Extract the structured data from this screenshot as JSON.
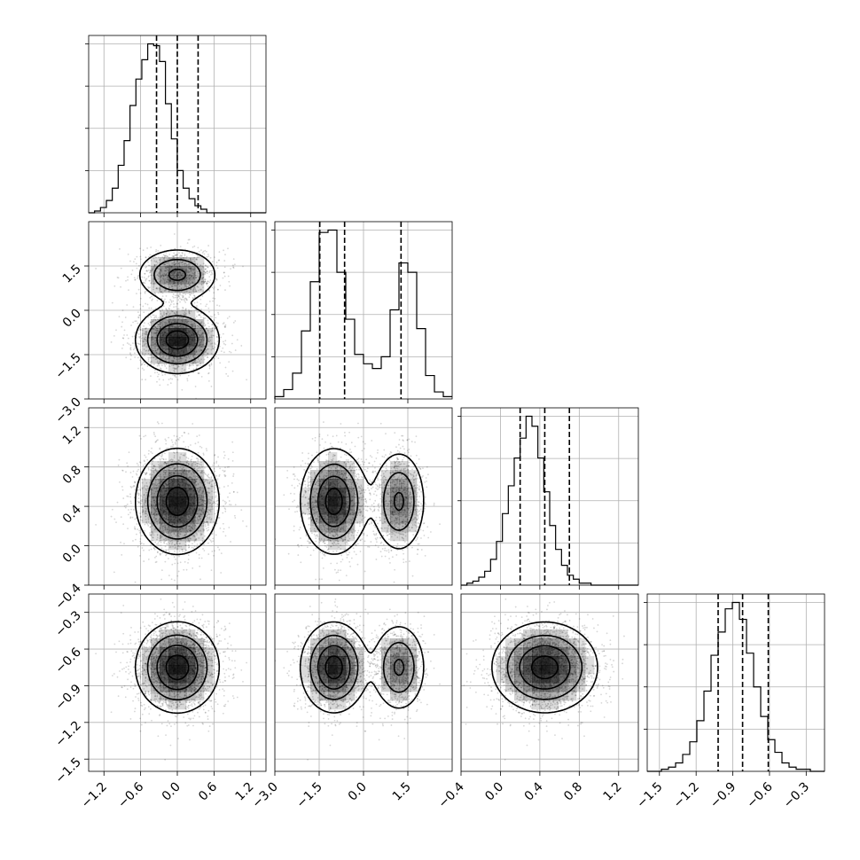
{
  "chart_data": {
    "type": "corner",
    "parameters": 4,
    "grid": true,
    "quantiles": [
      0.16,
      0.5,
      0.84
    ],
    "colors": {
      "line": "#000000",
      "grid": "#b0b0b0",
      "density": "#000000"
    },
    "axes": [
      {
        "range": [
          -1.45,
          1.45
        ],
        "ticks": [
          -1.2,
          -0.6,
          0.0,
          0.6,
          1.2
        ],
        "tick_labels": [
          "−1.2",
          "−0.6",
          "0.0",
          "0.6",
          "1.2"
        ]
      },
      {
        "range": [
          -3.0,
          3.0
        ],
        "ticks": [
          -3.0,
          -1.5,
          0.0,
          1.5
        ],
        "tick_labels": [
          "−3.0",
          "−1.5",
          "0.0",
          "1.5"
        ]
      },
      {
        "range": [
          -0.4,
          1.4
        ],
        "ticks": [
          -0.4,
          0.0,
          0.4,
          0.8,
          1.2
        ],
        "tick_labels": [
          "−0.4",
          "0.0",
          "0.4",
          "0.8",
          "1.2"
        ]
      },
      {
        "range": [
          -1.6,
          -0.15
        ],
        "ticks": [
          -1.5,
          -1.2,
          -0.9,
          -0.6,
          -0.3
        ],
        "tick_labels": [
          "−1.5",
          "−1.2",
          "−0.9",
          "−0.6",
          "−0.3"
        ]
      }
    ],
    "histograms": [
      {
        "bin_start": -1.45,
        "bin_width": 0.0966,
        "counts": [
          0,
          1,
          3,
          7,
          14,
          27,
          41,
          61,
          76,
          87,
          96,
          95,
          86,
          62,
          42,
          24,
          14,
          8,
          4,
          2,
          0,
          0,
          0,
          0,
          0,
          0,
          0,
          0,
          0,
          0
        ],
        "quantile_values": [
          -0.34,
          0.0,
          0.34
        ]
      },
      {
        "bin_start": -3.0,
        "bin_width": 0.3,
        "counts": [
          1,
          4,
          11,
          29,
          50,
          71,
          72,
          54,
          34,
          19,
          15,
          13,
          18,
          38,
          58,
          54,
          30,
          10,
          3,
          1
        ],
        "quantile_values": [
          -1.48,
          -0.64,
          1.27
        ]
      },
      {
        "bin_start": -0.4,
        "bin_width": 0.06,
        "counts": [
          0,
          1,
          2,
          4,
          7,
          13,
          22,
          36,
          50,
          64,
          74,
          85,
          80,
          64,
          47,
          30,
          18,
          10,
          5,
          3,
          1,
          1,
          0,
          0,
          0,
          0,
          0,
          0,
          0,
          0
        ],
        "quantile_values": [
          0.2,
          0.45,
          0.7
        ]
      },
      {
        "bin_start": -1.6,
        "bin_width": 0.058,
        "counts": [
          0,
          0,
          1,
          2,
          4,
          8,
          14,
          24,
          38,
          55,
          66,
          77,
          80,
          72,
          56,
          40,
          26,
          15,
          9,
          4,
          2,
          1,
          1,
          0,
          0
        ],
        "quantile_values": [
          -1.02,
          -0.82,
          -0.61
        ]
      }
    ],
    "mixture": [
      {
        "params": [
          0.0,
          1.0,
          0.45,
          -0.75
        ],
        "sigmas": [
          0.33,
          0.55,
          0.26,
          0.18
        ],
        "weight": 0.65,
        "primary": 1
      },
      {
        "params": [
          0.0,
          1.2,
          0.45,
          -0.75
        ],
        "sigmas": [
          0.33,
          0.45,
          0.26,
          0.18
        ],
        "weight": 0.35,
        "primary": 1
      }
    ],
    "mixture_overrides": {
      "component_a_means": [
        0.0,
        -1.0,
        0.45,
        -0.75
      ],
      "component_b_means": [
        0.0,
        1.2,
        0.45,
        -0.75
      ]
    }
  }
}
